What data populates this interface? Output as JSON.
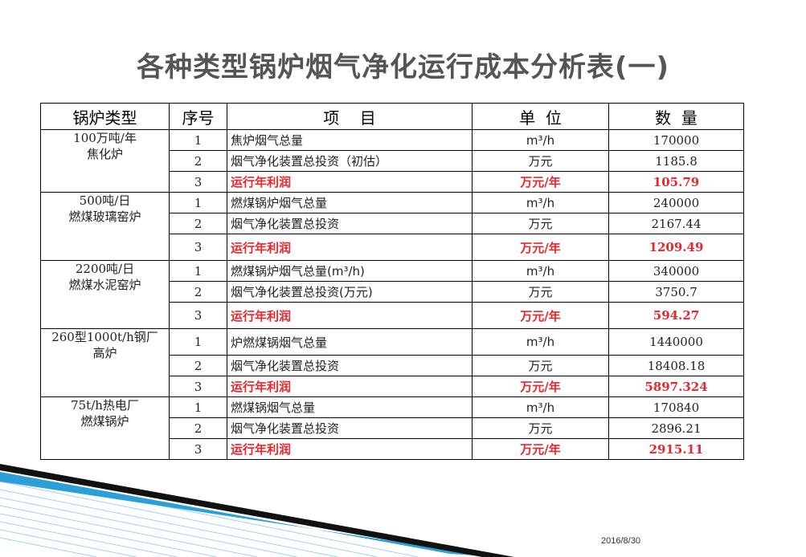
{
  "title": "各种类型锅炉烟气净化运行成本分析表(一)",
  "headers": {
    "type": "锅炉类型",
    "no": "序号",
    "item": "项    目",
    "unit": "单  位",
    "qty": "数  量"
  },
  "groups": [
    {
      "type_lines": [
        "100万吨/年",
        "焦化炉"
      ],
      "rows": [
        {
          "no": "1",
          "item": "焦炉烟气总量",
          "unit": "m³/h",
          "qty": "170000"
        },
        {
          "no": "2",
          "item": "烟气净化装置总投资（初估）",
          "unit": "万元",
          "qty": "1185.8"
        },
        {
          "no": "3",
          "item": "运行年利润",
          "unit": "万元/年",
          "qty": "105.79"
        }
      ]
    },
    {
      "type_lines": [
        "500吨/日",
        "燃煤玻璃窑炉"
      ],
      "rows": [
        {
          "no": "1",
          "item": "燃煤锅炉烟气总量",
          "unit": "m³/h",
          "qty": "240000"
        },
        {
          "no": "2",
          "item": "烟气净化装置总投资",
          "unit": "万元",
          "qty": "2167.44"
        },
        {
          "no": "3",
          "item": "运行年利润",
          "unit": "万元/年",
          "qty": "1209.49"
        }
      ]
    },
    {
      "type_lines": [
        "2200吨/日",
        "燃煤水泥窑炉"
      ],
      "rows": [
        {
          "no": "1",
          "item": "燃煤锅炉烟气总量(m³/h)",
          "unit": "m³/h",
          "qty": "340000"
        },
        {
          "no": "2",
          "item": "烟气净化装置总投资(万元)",
          "unit": "万元",
          "qty": "3750.7"
        },
        {
          "no": "3",
          "item": "运行年利润",
          "unit": "万元/年",
          "qty": "594.27"
        }
      ]
    },
    {
      "type_lines": [
        "260型1000t/h钢厂",
        "高炉"
      ],
      "rows": [
        {
          "no": "1",
          "item": "炉燃煤锅烟气总量",
          "unit": "m³/h",
          "qty": "1440000"
        },
        {
          "no": "2",
          "item": "烟气净化装置总投资",
          "unit": "万元",
          "qty": "18408.18"
        },
        {
          "no": "3",
          "item": "运行年利润",
          "unit": "万元/年",
          "qty": "5897.324"
        }
      ]
    },
    {
      "type_lines": [
        "75t/h热电厂",
        "燃煤锅炉"
      ],
      "rows": [
        {
          "no": "1",
          "item": "燃煤锅烟气总量",
          "unit": "m³/h",
          "qty": "170840"
        },
        {
          "no": "2",
          "item": "烟气净化装置总投资",
          "unit": "万元",
          "qty": "2896.21"
        },
        {
          "no": "3",
          "item": "运行年利润",
          "unit": "万元/年",
          "qty": "2915.11"
        }
      ]
    }
  ],
  "date": "2016/8/30",
  "colors": {
    "profit_text": "#e8262c",
    "title_text": "#555555",
    "decor_blue": "#2a9fd8",
    "decor_dark": "#111111"
  }
}
